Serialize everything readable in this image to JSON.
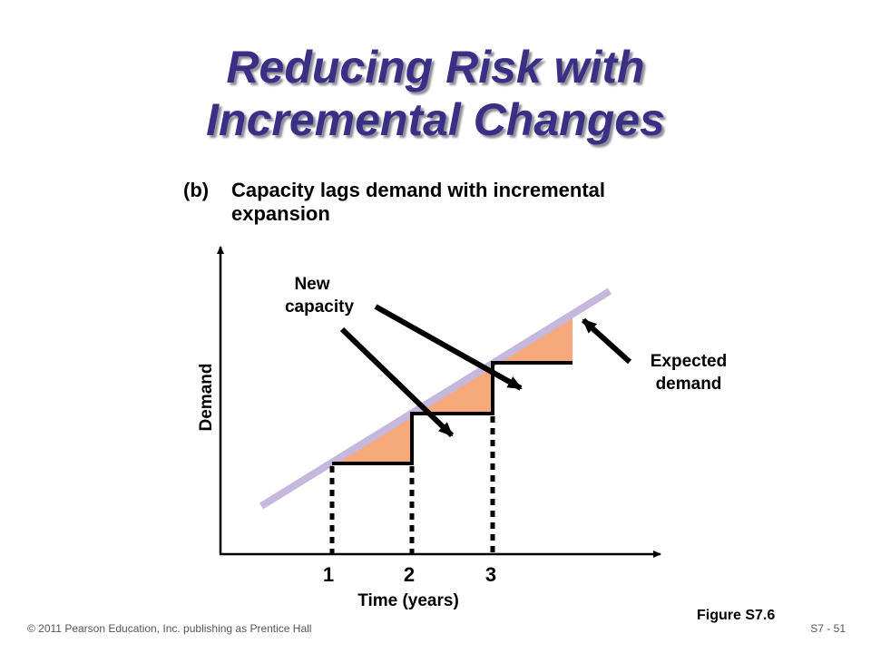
{
  "title": {
    "line1": "Reducing Risk with",
    "line2": "Incremental Changes"
  },
  "subtitle": {
    "prefix": "(b)",
    "line1": "Capacity lags demand with incremental",
    "line2": "expansion"
  },
  "diagram": {
    "y_axis_label": "Demand",
    "x_axis_label": "Time (years)",
    "ticks": [
      "1",
      "2",
      "3"
    ],
    "new_capacity_label": [
      "New",
      "capacity"
    ],
    "expected_demand_label": [
      "Expected",
      "demand"
    ],
    "colors": {
      "expected_demand_line": "#c5b8dc",
      "shortfall_fill": "#f6a97b",
      "capacity_line": "#000000"
    }
  },
  "figure_label": "Figure S7.6",
  "footer": {
    "copyright": "© 2011 Pearson Education, Inc. publishing as Prentice Hall",
    "slide_number": "S7 - 51"
  }
}
